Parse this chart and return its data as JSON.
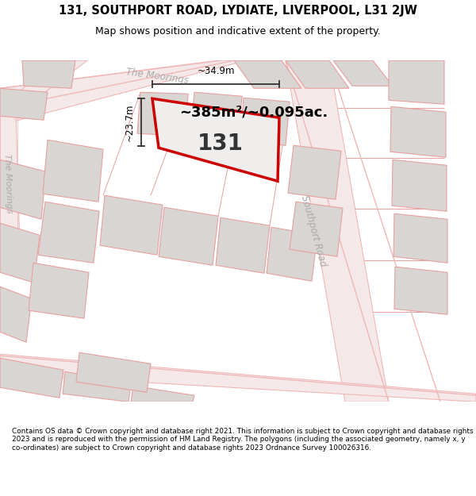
{
  "title_line1": "131, SOUTHPORT ROAD, LYDIATE, LIVERPOOL, L31 2JW",
  "title_line2": "Map shows position and indicative extent of the property.",
  "footer": "Contains OS data © Crown copyright and database right 2021. This information is subject to Crown copyright and database rights 2023 and is reproduced with the permission of HM Land Registry. The polygons (including the associated geometry, namely x, y co-ordinates) are subject to Crown copyright and database rights 2023 Ordnance Survey 100026316.",
  "area_label": "~385m²/~0.095ac.",
  "plot_number": "131",
  "width_label": "~34.9m",
  "height_label": "~23.7m",
  "bg_color": "#f9f7f5",
  "road_color": "#f0b8b8",
  "road_fill": "#f5e8e8",
  "bldg_fill": "#d8d5d2",
  "bldg_edge": "#e8a0a0",
  "highlight_color": "#cc0000",
  "street_text_color": "#aaaaaa",
  "white": "#ffffff",
  "title_fontsize": 10.5,
  "subtitle_fontsize": 9.0,
  "footer_fontsize": 6.4,
  "area_fontsize": 13.0,
  "number_fontsize": 20.0,
  "dim_fontsize": 8.5,
  "street_fontsize": 8.5
}
